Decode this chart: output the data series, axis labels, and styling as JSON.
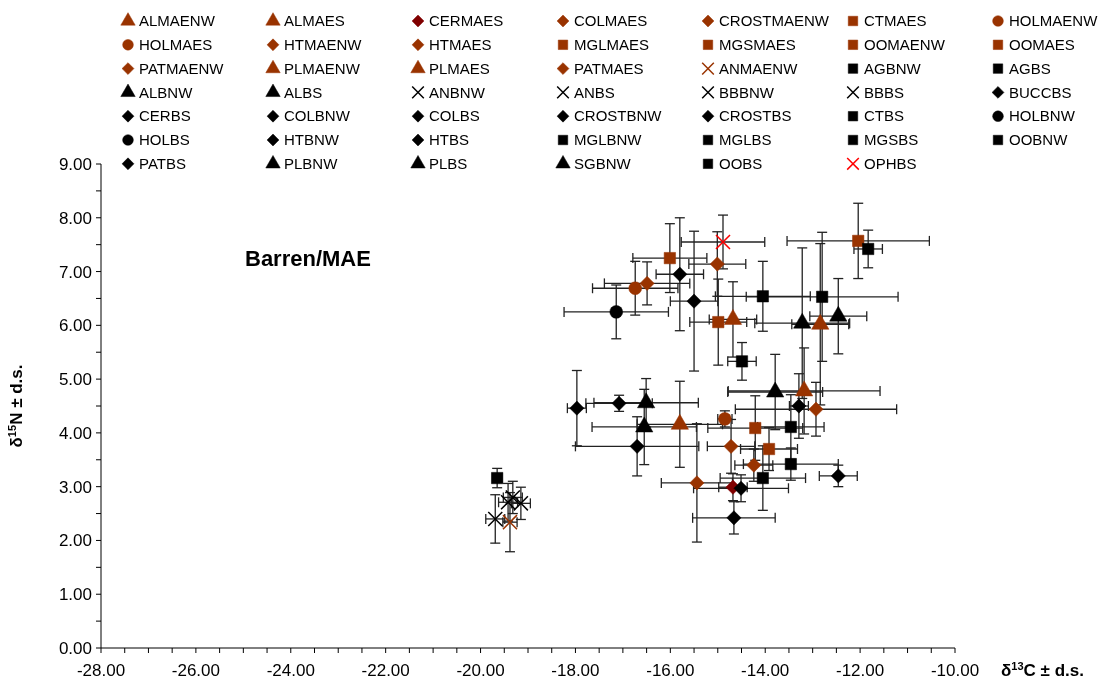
{
  "chart_data": {
    "type": "scatter",
    "xlabel": "δ$^{13}$C ± d.s.",
    "ylabel": "δ$^{15}$N ± d.s.",
    "annotations": [
      "Barren/MAE"
    ],
    "legend": "top",
    "grid": false,
    "xlim": [
      -28,
      -10
    ],
    "ylim": [
      0,
      9
    ],
    "xticks": [
      {
        "value": -28,
        "label": "-28.00"
      },
      {
        "value": -27.5,
        "label": null
      },
      {
        "value": -27,
        "label": null
      },
      {
        "value": -26.5,
        "label": null
      },
      {
        "value": -26,
        "label": "-26.00"
      },
      {
        "value": -25.5,
        "label": null
      },
      {
        "value": -25,
        "label": null
      },
      {
        "value": -24.5,
        "label": null
      },
      {
        "value": -24,
        "label": "-24.00"
      },
      {
        "value": -23.5,
        "label": null
      },
      {
        "value": -23,
        "label": null
      },
      {
        "value": -22.5,
        "label": null
      },
      {
        "value": -22,
        "label": "-22.00"
      },
      {
        "value": -21.5,
        "label": null
      },
      {
        "value": -21,
        "label": null
      },
      {
        "value": -20.5,
        "label": null
      },
      {
        "value": -20,
        "label": "-20.00"
      },
      {
        "value": -19.5,
        "label": null
      },
      {
        "value": -19,
        "label": null
      },
      {
        "value": -18.5,
        "label": null
      },
      {
        "value": -18,
        "label": "-18.00"
      },
      {
        "value": -17.5,
        "label": null
      },
      {
        "value": -17,
        "label": null
      },
      {
        "value": -16.5,
        "label": null
      },
      {
        "value": -16,
        "label": "-16.00"
      },
      {
        "value": -15.5,
        "label": null
      },
      {
        "value": -15,
        "label": null
      },
      {
        "value": -14.5,
        "label": null
      },
      {
        "value": -14,
        "label": "-14.00"
      },
      {
        "value": -13.5,
        "label": null
      },
      {
        "value": -13,
        "label": null
      },
      {
        "value": -12.5,
        "label": null
      },
      {
        "value": -12,
        "label": "-12.00"
      },
      {
        "value": -11.5,
        "label": null
      },
      {
        "value": -11,
        "label": null
      },
      {
        "value": -10.5,
        "label": null
      },
      {
        "value": -10,
        "label": "-10.00"
      }
    ],
    "yticks": [
      {
        "value": 0,
        "label": "0.00"
      },
      {
        "value": 0.5,
        "label": null
      },
      {
        "value": 1,
        "label": "1.00"
      },
      {
        "value": 1.5,
        "label": null
      },
      {
        "value": 2,
        "label": "2.00"
      },
      {
        "value": 2.5,
        "label": null
      },
      {
        "value": 3,
        "label": "3.00"
      },
      {
        "value": 3.5,
        "label": null
      },
      {
        "value": 4,
        "label": "4.00"
      },
      {
        "value": 4.5,
        "label": null
      },
      {
        "value": 5,
        "label": "5.00"
      },
      {
        "value": 5.5,
        "label": null
      },
      {
        "value": 6,
        "label": "6.00"
      },
      {
        "value": 6.5,
        "label": null
      },
      {
        "value": 7,
        "label": "7.00"
      },
      {
        "value": 7.5,
        "label": null
      },
      {
        "value": 8,
        "label": "8.00"
      },
      {
        "value": 8.5,
        "label": null
      },
      {
        "value": 9,
        "label": "9.00"
      }
    ],
    "series": [
      {
        "name": "ALMAENW",
        "color": "#993300",
        "marker": "triangle",
        "x": [
          -12.84
        ],
        "values": [
          6.02
        ],
        "xerrors": [
          0.6
        ],
        "errors": [
          1.5
        ]
      },
      {
        "name": "ALMAES",
        "color": "#993300",
        "marker": "triangle",
        "x": [
          -14.68
        ],
        "values": [
          6.11
        ],
        "xerrors": [
          0.5
        ],
        "errors": [
          0.7
        ]
      },
      {
        "name": "CERMAES",
        "color": "#800000",
        "marker": "diamond",
        "x": [
          -14.68
        ],
        "values": [
          2.99
        ],
        "xerrors": [
          0.3
        ],
        "errors": [
          0.25
        ]
      },
      {
        "name": "COLMAES",
        "color": "#993300",
        "marker": "diamond",
        "x": [
          -15.01
        ],
        "values": [
          7.14
        ],
        "xerrors": [
          0.6
        ],
        "errors": [
          0.6
        ]
      },
      {
        "name": "CROSTMAENW",
        "color": "#993300",
        "marker": "diamond",
        "x": [
          -16.49
        ],
        "values": [
          6.78
        ],
        "xerrors": [
          0.9
        ],
        "errors": [
          0.4
        ]
      },
      {
        "name": "CTMAES",
        "color": "#993300",
        "marker": "square",
        "x": [
          -12.04
        ],
        "values": [
          7.57
        ],
        "xerrors": [
          1.5
        ],
        "errors": [
          0.7
        ]
      },
      {
        "name": "HOLMAENW",
        "color": "#993300",
        "marker": "circle",
        "x": [
          -16.74
        ],
        "values": [
          6.69
        ],
        "xerrors": [
          0.9
        ],
        "errors": [
          0.5
        ]
      },
      {
        "name": "HOLMAES",
        "color": "#993300",
        "marker": "circle",
        "x": [
          -14.85
        ],
        "values": [
          4.26
        ],
        "xerrors": [
          0.15
        ],
        "errors": [
          0.15
        ]
      },
      {
        "name": "HTMAENW",
        "color": "#993300",
        "marker": "diamond",
        "x": [
          -12.93
        ],
        "values": [
          4.44
        ],
        "xerrors": [
          1.7
        ],
        "errors": [
          0.5
        ]
      },
      {
        "name": "HTMAES",
        "color": "#993300",
        "marker": "diamond",
        "x": [
          -15.44
        ],
        "values": [
          3.07
        ],
        "xerrors": [
          0.75
        ],
        "errors": [
          1.1
        ]
      },
      {
        "name": "MGLMAES",
        "color": "#993300",
        "marker": "square",
        "x": [
          -16.01
        ],
        "values": [
          7.25
        ],
        "xerrors": [
          0.78
        ],
        "errors": [
          0.64
        ]
      },
      {
        "name": "MGSMAES",
        "color": "#993300",
        "marker": "square",
        "x": [
          -14.99
        ],
        "values": [
          6.06
        ],
        "xerrors": [
          0.6
        ],
        "errors": [
          0.8
        ]
      },
      {
        "name": "OOMAENW",
        "color": "#993300",
        "marker": "square",
        "x": [
          -14.21
        ],
        "values": [
          4.09
        ],
        "xerrors": [
          1.0
        ],
        "errors": [
          0.6
        ]
      },
      {
        "name": "OOMAES",
        "color": "#993300",
        "marker": "square",
        "x": [
          -13.92
        ],
        "values": [
          3.7
        ],
        "xerrors": [
          0.6
        ],
        "errors": [
          0.4
        ]
      },
      {
        "name": "PATMAENW",
        "color": "#993300",
        "marker": "diamond",
        "x": [
          -14.72
        ],
        "values": [
          3.75
        ],
        "xerrors": [
          0.5
        ],
        "errors": [
          0.5
        ]
      },
      {
        "name": "PLMAENW",
        "color": "#993300",
        "marker": "triangle",
        "x": [
          -13.18
        ],
        "values": [
          4.78
        ],
        "xerrors": [
          1.6
        ],
        "errors": [
          0.8
        ]
      },
      {
        "name": "PLMAES",
        "color": "#993300",
        "marker": "triangle",
        "x": [
          -15.8
        ],
        "values": [
          4.16
        ],
        "xerrors": [
          0.9
        ],
        "errors": [
          0.8
        ]
      },
      {
        "name": "PATMAES",
        "color": "#993300",
        "marker": "diamond",
        "x": [
          -14.24
        ],
        "values": [
          3.4
        ],
        "xerrors": [
          0.4
        ],
        "errors": [
          0.3
        ]
      },
      {
        "name": "ANMAENW",
        "color": "#993300",
        "marker": "cross",
        "x": [
          -19.38
        ],
        "values": [
          2.34
        ],
        "xerrors": [
          0.15
        ],
        "errors": [
          0.55
        ]
      },
      {
        "name": "AGBNW",
        "color": "#000000",
        "marker": "square",
        "x": [
          -11.83
        ],
        "values": [
          7.42
        ],
        "xerrors": [
          0.3
        ],
        "errors": [
          0.35
        ]
      },
      {
        "name": "AGBS",
        "color": "#000000",
        "marker": "square",
        "x": [
          -13.46
        ],
        "values": [
          3.42
        ],
        "xerrors": [
          1.0
        ],
        "errors": [
          0.3
        ]
      },
      {
        "name": "ALBNW",
        "color": "#000000",
        "marker": "triangle",
        "x": [
          -13.22
        ],
        "values": [
          6.04
        ],
        "xerrors": [
          1.0
        ],
        "errors": [
          1.4
        ]
      },
      {
        "name": "ALBS",
        "color": "#000000",
        "marker": "triangle",
        "x": [
          -12.46
        ],
        "values": [
          6.17
        ],
        "xerrors": [
          0.6
        ],
        "errors": [
          0.7
        ]
      },
      {
        "name": "ANBNW",
        "color": "#000000",
        "marker": "cross",
        "x": [
          -19.69
        ],
        "values": [
          2.4
        ],
        "xerrors": [
          0.2
        ],
        "errors": [
          0.45
        ]
      },
      {
        "name": "ANBS",
        "color": "#000000",
        "marker": "cross",
        "x": [
          -19.42
        ],
        "values": [
          2.71
        ],
        "xerrors": [
          0.2
        ],
        "errors": [
          0.35
        ]
      },
      {
        "name": "BBBNW",
        "color": "#000000",
        "marker": "cross",
        "x": [
          -19.32
        ],
        "values": [
          2.8
        ],
        "xerrors": [
          0.2
        ],
        "errors": [
          0.3
        ]
      },
      {
        "name": "BBBS",
        "color": "#000000",
        "marker": "cross",
        "x": [
          -19.15
        ],
        "values": [
          2.69
        ],
        "xerrors": [
          0.2
        ],
        "errors": [
          0.3
        ]
      },
      {
        "name": "BUCCBS",
        "color": "#000000",
        "marker": "diamond",
        "x": [
          -13.29
        ],
        "values": [
          4.5
        ],
        "xerrors": [
          0.2
        ],
        "errors": [
          0.6
        ]
      },
      {
        "name": "CERBS",
        "color": "#000000",
        "marker": "diamond",
        "x": [
          -12.46
        ],
        "values": [
          3.2
        ],
        "xerrors": [
          0.4
        ],
        "errors": [
          0.2
        ]
      },
      {
        "name": "COLBNW",
        "color": "#000000",
        "marker": "diamond",
        "x": [
          -17.08
        ],
        "values": [
          4.55
        ],
        "xerrors": [
          0.7
        ],
        "errors": [
          0.15
        ]
      },
      {
        "name": "COLBS",
        "color": "#000000",
        "marker": "diamond",
        "x": [
          -15.8
        ],
        "values": [
          6.95
        ],
        "xerrors": [
          0.5
        ],
        "errors": [
          1.05
        ]
      },
      {
        "name": "CROSTBNW",
        "color": "#000000",
        "marker": "diamond",
        "x": [
          -17.97
        ],
        "values": [
          4.46
        ],
        "xerrors": [
          0.2
        ],
        "errors": [
          0.7
        ]
      },
      {
        "name": "CROSTBS",
        "color": "#000000",
        "marker": "diamond",
        "x": [
          -15.5
        ],
        "values": [
          6.45
        ],
        "xerrors": [
          0.5
        ],
        "errors": [
          1.3
        ]
      },
      {
        "name": "CTBS",
        "color": "#000000",
        "marker": "square",
        "x": [
          -14.49
        ],
        "values": [
          5.33
        ],
        "xerrors": [
          0.3
        ],
        "errors": [
          0.35
        ]
      },
      {
        "name": "HOLBNW",
        "color": "#000000",
        "marker": "circle",
        "x": [
          -17.14
        ],
        "values": [
          6.25
        ],
        "xerrors": [
          1.1
        ],
        "errors": [
          0.5
        ]
      },
      {
        "name": "HOLBS",
        "color": "#000000",
        "marker": "circle",
        "x": [
          null
        ],
        "values": [
          null
        ]
      },
      {
        "name": "HTBNW",
        "color": "#000000",
        "marker": "diamond",
        "x": [
          -14.51
        ],
        "values": [
          2.97
        ],
        "xerrors": [
          1.0
        ],
        "errors": [
          0.25
        ]
      },
      {
        "name": "HTBS",
        "color": "#000000",
        "marker": "diamond",
        "x": [
          -14.66
        ],
        "values": [
          2.42
        ],
        "xerrors": [
          0.87
        ],
        "errors": [
          0.3
        ]
      },
      {
        "name": "MGLBNW",
        "color": "#000000",
        "marker": "square",
        "x": [
          -12.8
        ],
        "values": [
          6.53
        ],
        "xerrors": [
          1.6
        ],
        "errors": [
          1.2
        ]
      },
      {
        "name": "MGLBS",
        "color": "#000000",
        "marker": "square",
        "x": [
          -14.05
        ],
        "values": [
          6.54
        ],
        "xerrors": [
          1.0
        ],
        "errors": [
          0.65
        ]
      },
      {
        "name": "MGSBS",
        "color": "#000000",
        "marker": "square",
        "x": [
          -13.46
        ],
        "values": [
          4.11
        ],
        "xerrors": [
          0.7
        ],
        "errors": [
          0.6
        ]
      },
      {
        "name": "OOBNW",
        "color": "#000000",
        "marker": "square",
        "x": [
          -14.05
        ],
        "values": [
          3.16
        ],
        "xerrors": [
          0.9
        ],
        "errors": [
          0.6
        ]
      },
      {
        "name": "PATBS",
        "color": "#000000",
        "marker": "diamond",
        "x": [
          -16.7
        ],
        "values": [
          3.75
        ],
        "xerrors": [
          1.3
        ],
        "errors": [
          0.55
        ]
      },
      {
        "name": "PLBNW",
        "color": "#000000",
        "marker": "triangle",
        "x": [
          -16.51
        ],
        "values": [
          4.56
        ],
        "xerrors": [
          1.1
        ],
        "errors": [
          0.45
        ]
      },
      {
        "name": "PLBS",
        "color": "#000000",
        "marker": "triangle",
        "x": [
          -16.55
        ],
        "values": [
          4.11
        ],
        "xerrors": [
          1.1
        ],
        "errors": [
          0.7
        ]
      },
      {
        "name": "SGBNW",
        "color": "#000000",
        "marker": "triangle",
        "x": [
          -13.79
        ],
        "values": [
          4.76
        ],
        "xerrors": [
          1.0
        ],
        "errors": [
          0.7
        ]
      },
      {
        "name": "OOBS",
        "color": "#000000",
        "marker": "square",
        "x": [
          -19.65
        ],
        "values": [
          3.16
        ],
        "xerrors": [
          0.1
        ],
        "errors": [
          0.18
        ]
      },
      {
        "name": "OPHBS",
        "color": "#ff0000",
        "marker": "cross",
        "x": [
          -14.89
        ],
        "values": [
          7.55
        ],
        "xerrors": [
          0.88
        ],
        "errors": [
          0.5
        ]
      }
    ]
  }
}
